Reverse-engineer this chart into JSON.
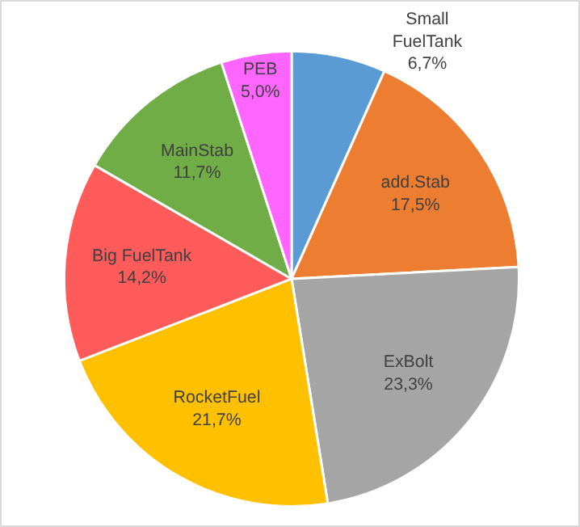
{
  "chart_data": {
    "type": "pie",
    "categories": [
      "Small FuelTank",
      "add.Stab",
      "ExBolt",
      "RocketFuel",
      "Big FuelTank",
      "MainStab",
      "PEB"
    ],
    "values": [
      6.7,
      17.5,
      23.3,
      21.7,
      14.2,
      11.7,
      5.0
    ],
    "value_labels": [
      "6,7%",
      "17,5%",
      "23,3%",
      "21,7%",
      "14,2%",
      "11,7%",
      "5,0%"
    ],
    "colors": [
      "#5b9bd5",
      "#ed7d31",
      "#a5a5a5",
      "#ffc000",
      "#ff5b5b",
      "#70ad47",
      "#ff66ff"
    ]
  }
}
